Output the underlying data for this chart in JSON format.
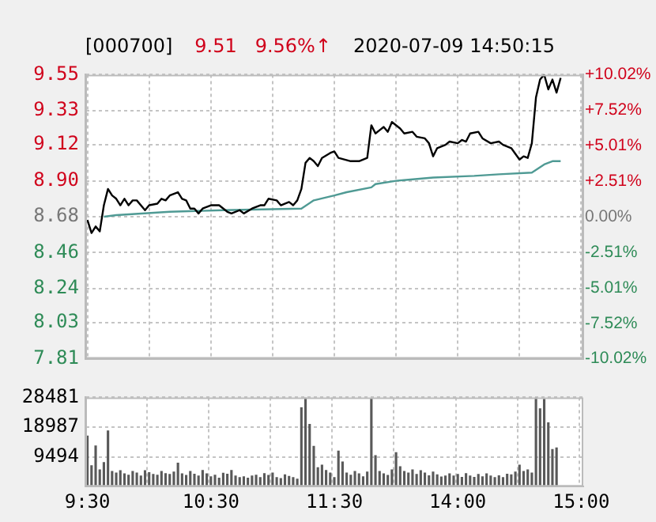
{
  "chart_data": [
    {
      "type": "line",
      "title": "[000700]",
      "subtitle": "9.51   9.56%↑",
      "annotations": [
        "2020-07-09 14:50:15"
      ],
      "categories": [
        null,
        null,
        null,
        null,
        null,
        null,
        null,
        null,
        null,
        null,
        null,
        null,
        null,
        null,
        null,
        null,
        null,
        null,
        null,
        null,
        null,
        null,
        null,
        null,
        null,
        null,
        null,
        null,
        null,
        null,
        null,
        null,
        null,
        null,
        null,
        null,
        null,
        null,
        null,
        null,
        null,
        null,
        null,
        null,
        null,
        null,
        null,
        null,
        null,
        null,
        null,
        null,
        null,
        null,
        null,
        null,
        null,
        null,
        null,
        null,
        null,
        null,
        null,
        null,
        null,
        null,
        null,
        null,
        null,
        null,
        null,
        null,
        null,
        null,
        null,
        null,
        null,
        null,
        null,
        null,
        null,
        null,
        null,
        null,
        null,
        null,
        null,
        null,
        null,
        null,
        null,
        null,
        null,
        null,
        null,
        null,
        null,
        null,
        null,
        null,
        null,
        null,
        null,
        null,
        null,
        null,
        null,
        null,
        null,
        null,
        null,
        null,
        null,
        null,
        null,
        null,
        null,
        null,
        null,
        null,
        null
      ],
      "ylim": [
        7.81,
        9.55
      ],
      "yticks": [
        7.81,
        8.03,
        8.24,
        8.46,
        8.68,
        {
          "value": 8.9,
          "label": "8.90"
        },
        9.12,
        9.33,
        9.55
      ],
      "y2lim": [
        -10.02,
        10.02
      ],
      "y2ticks": [
        {
          "value": -10.02,
          "label": "-10.02%"
        },
        {
          "value": -7.52,
          "label": "-7.52%"
        },
        {
          "value": -5.01,
          "label": "-5.01%"
        },
        {
          "value": -2.51,
          "label": "-2.51%"
        },
        {
          "value": 0,
          "label": "0.00%"
        },
        {
          "value": 2.51,
          "label": "+2.51%"
        },
        {
          "value": 5.01,
          "label": "+5.01%"
        },
        {
          "value": 7.52,
          "label": "+7.52%"
        },
        {
          "value": 10.02,
          "label": "+10.02%"
        }
      ],
      "tick_labels": "y",
      "grid": true,
      "marker": "none",
      "series": [
        {
          "color": "#000000",
          "values": [
            8.66,
            8.58,
            8.62,
            8.59,
            8.75,
            8.85,
            8.81,
            8.79,
            8.75,
            8.79,
            8.75,
            8.78,
            8.78,
            null,
            8.72,
            8.75,
            null,
            8.76,
            8.79,
            8.78,
            8.81,
            null,
            8.83,
            8.79,
            8.78,
            8.73,
            8.73,
            8.7,
            8.73,
            null,
            8.75,
            null,
            8.75,
            null,
            8.71,
            8.7,
            null,
            8.72,
            8.7,
            null,
            8.73,
            null,
            8.75,
            8.75,
            8.79,
            null,
            8.78,
            8.75,
            null,
            8.77,
            8.75,
            8.78,
            8.85,
            9.01,
            9.04,
            9.02,
            8.99,
            9.04,
            null,
            9.07,
            9.08,
            9.04,
            null,
            null,
            9.02,
            null,
            9.02,
            null,
            9.04,
            9.24,
            9.19,
            9.21,
            9.23,
            9.2,
            9.26,
            null,
            9.22,
            9.19,
            null,
            9.2,
            9.17,
            null,
            9.16,
            9.13,
            9.05,
            9.1,
            null,
            9.12,
            9.14,
            null,
            9.13,
            9.15,
            9.14,
            9.19,
            null,
            9.2,
            9.16,
            null,
            9.13,
            null,
            9.14,
            9.12,
            null,
            9.1,
            null,
            9.03,
            9.05,
            9.04,
            9.13,
            9.41,
            9.52,
            9.55,
            9.46,
            9.52,
            9.44,
            9.53,
            null,
            null,
            null,
            null,
            null
          ]
        },
        {
          "color": "#4f9a94",
          "values": [
            null,
            null,
            null,
            null,
            8.68,
            null,
            null,
            8.69,
            null,
            null,
            null,
            null,
            null,
            null,
            null,
            null,
            null,
            null,
            null,
            null,
            8.71,
            null,
            null,
            null,
            null,
            null,
            null,
            null,
            null,
            null,
            null,
            null,
            null,
            8.72,
            null,
            null,
            null,
            null,
            null,
            null,
            null,
            null,
            null,
            null,
            null,
            null,
            null,
            null,
            null,
            null,
            null,
            null,
            8.73,
            null,
            null,
            8.78,
            null,
            null,
            null,
            null,
            8.81,
            null,
            null,
            8.83,
            null,
            null,
            null,
            null,
            null,
            8.86,
            8.88,
            null,
            null,
            null,
            null,
            8.9,
            null,
            null,
            null,
            null,
            null,
            null,
            null,
            null,
            8.92,
            null,
            null,
            null,
            null,
            null,
            null,
            null,
            null,
            null,
            8.93,
            null,
            null,
            null,
            null,
            null,
            8.94,
            null,
            null,
            null,
            null,
            null,
            null,
            null,
            8.95,
            null,
            null,
            9.0,
            null,
            9.02,
            null,
            9.02,
            null,
            null,
            null,
            null,
            null
          ]
        }
      ]
    },
    {
      "type": "bar",
      "color": "#595959",
      "grid": true,
      "categories": [
        "9:30",
        null,
        null,
        null,
        null,
        null,
        null,
        null,
        null,
        null,
        null,
        null,
        null,
        null,
        null,
        null,
        null,
        null,
        null,
        null,
        null,
        null,
        null,
        null,
        null,
        null,
        null,
        null,
        null,
        null,
        "10:30",
        null,
        null,
        null,
        null,
        null,
        null,
        null,
        null,
        null,
        null,
        null,
        null,
        null,
        null,
        null,
        null,
        null,
        null,
        null,
        null,
        null,
        null,
        null,
        null,
        null,
        null,
        null,
        null,
        null,
        "11:30",
        null,
        null,
        null,
        null,
        null,
        null,
        null,
        null,
        null,
        null,
        null,
        null,
        null,
        null,
        null,
        null,
        null,
        null,
        null,
        null,
        null,
        null,
        null,
        null,
        null,
        null,
        null,
        null,
        null,
        "14:00",
        null,
        null,
        null,
        null,
        null,
        null,
        null,
        null,
        null,
        null,
        null,
        null,
        null,
        null,
        null,
        null,
        null,
        null,
        null,
        null,
        null,
        null,
        null,
        null,
        null,
        null,
        null,
        null,
        null,
        "15:00"
      ],
      "ylim": [
        0,
        28481
      ],
      "yticks": [
        9494,
        18987,
        28481
      ],
      "values": [
        16300,
        6800,
        13100,
        5500,
        7800,
        17900,
        5000,
        4500,
        5200,
        4200,
        3800,
        5000,
        4500,
        3500,
        5200,
        4600,
        4000,
        3800,
        5000,
        4300,
        4000,
        4800,
        7600,
        4200,
        3700,
        5000,
        4100,
        3500,
        5300,
        4200,
        3300,
        3800,
        2800,
        4400,
        4100,
        5300,
        3500,
        3000,
        3300,
        2800,
        3500,
        3800,
        3000,
        4300,
        3700,
        4500,
        3000,
        2700,
        3900,
        3400,
        3000,
        2500,
        25300,
        28481,
        20000,
        13000,
        6200,
        7000,
        5300,
        4500,
        3000,
        11500,
        8000,
        4500,
        3800,
        5000,
        4200,
        3300,
        4800,
        28100,
        10000,
        5000,
        4200,
        3700,
        5500,
        11000,
        6500,
        5000,
        4500,
        5500,
        4000,
        5200,
        4500,
        3600,
        4800,
        3900,
        3200,
        3500,
        4200,
        3500,
        4000,
        3100,
        4300,
        3500,
        3100,
        4000,
        3300,
        4200,
        3500,
        3000,
        3600,
        3000,
        4100,
        3900,
        4800,
        7000,
        5000,
        5500,
        4500,
        28481,
        25000,
        28000,
        20500,
        12000,
        12500,
        null,
        null,
        null,
        null,
        null,
        null
      ]
    }
  ]
}
